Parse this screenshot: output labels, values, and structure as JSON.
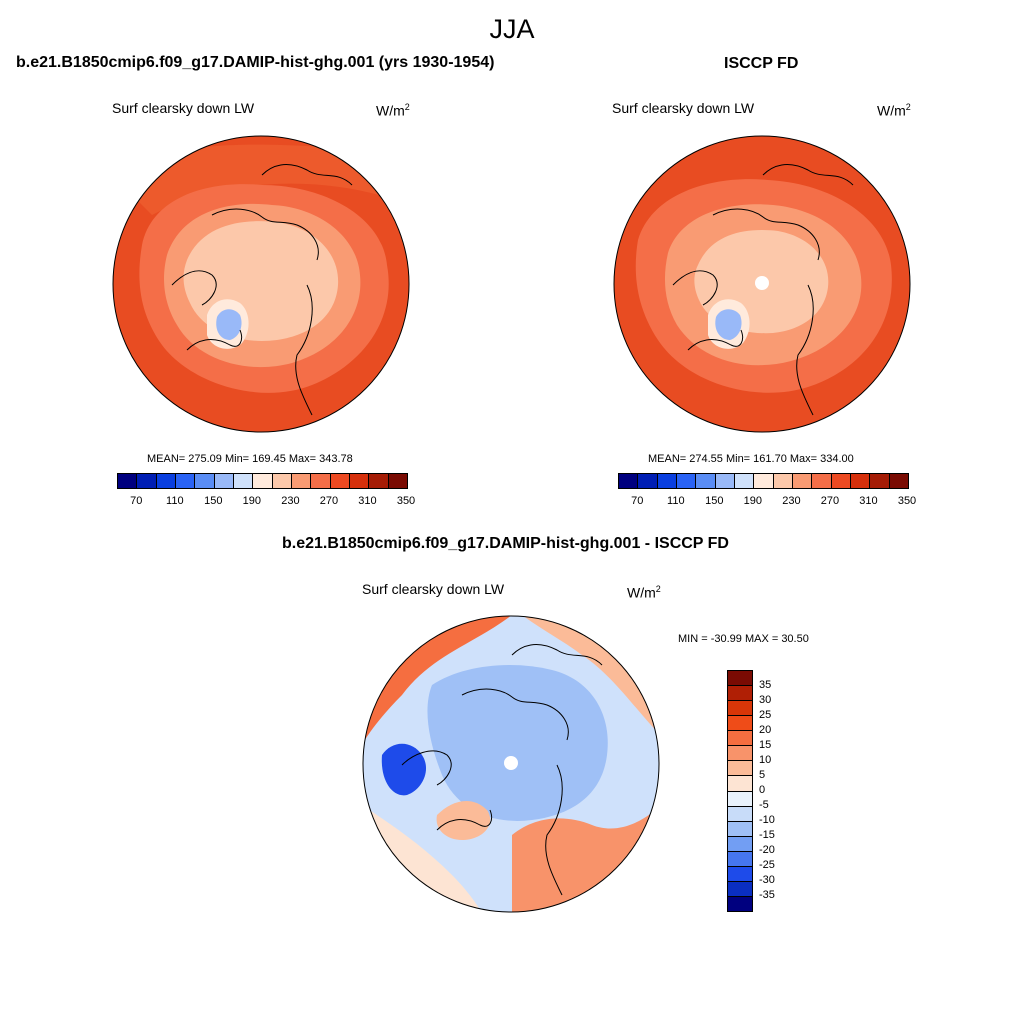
{
  "figure": {
    "season": "JJA"
  },
  "panels": {
    "model": {
      "title": "b.e21.B1850cmip6.f09_g17.DAMIP-hist-ghg.001 (yrs 1930-1954)",
      "variable": "Surf clearsky down LW",
      "units_base": "W/m",
      "units_exp": "2",
      "stats": "MEAN= 275.09  Min= 169.45  Max= 343.78",
      "field_levels": [
        230,
        250,
        270,
        290,
        310,
        330
      ]
    },
    "obs": {
      "title": "ISCCP FD",
      "variable": "Surf clearsky down LW",
      "units_base": "W/m",
      "units_exp": "2",
      "stats": "MEAN= 274.55  Min= 161.70  Max= 334.00",
      "field_levels": [
        230,
        250,
        270,
        290,
        310,
        330
      ]
    },
    "diff": {
      "title": "b.e21.B1850cmip6.f09_g17.DAMIP-hist-ghg.001 - ISCCP FD",
      "variable": "Surf clearsky down LW",
      "units_base": "W/m",
      "units_exp": "2",
      "stats": "MIN = -30.99 MAX =  30.50"
    }
  },
  "colorbars": {
    "main": {
      "colors": [
        "#00007f",
        "#001eb4",
        "#0a3fe0",
        "#2a63f5",
        "#5a8df5",
        "#99b9f8",
        "#cfe1fb",
        "#ffeadc",
        "#fcc8aa",
        "#f99b73",
        "#f46e48",
        "#ed4a22",
        "#d6300c",
        "#a51c06",
        "#7a0b03"
      ],
      "tick_labels": [
        "70",
        "110",
        "150",
        "190",
        "230",
        "270",
        "310",
        "350"
      ]
    },
    "diff": {
      "colors": [
        "#7a0b03",
        "#b01f05",
        "#d83608",
        "#ef4c18",
        "#f56e40",
        "#f8936a",
        "#fbbb98",
        "#fde4d3",
        "#e9f2fc",
        "#c8dcf9",
        "#9fc0f6",
        "#729ef3",
        "#4676ef",
        "#1e4bea",
        "#0a2ec2",
        "#00007f"
      ],
      "tick_labels": [
        "35",
        "30",
        "25",
        "20",
        "15",
        "10",
        "5",
        "0",
        "-5",
        "-10",
        "-15",
        "-20",
        "-25",
        "-30",
        "-35"
      ]
    }
  }
}
